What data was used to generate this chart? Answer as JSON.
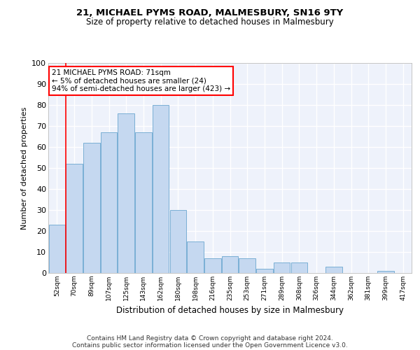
{
  "title1": "21, MICHAEL PYMS ROAD, MALMESBURY, SN16 9TY",
  "title2": "Size of property relative to detached houses in Malmesbury",
  "xlabel": "Distribution of detached houses by size in Malmesbury",
  "ylabel": "Number of detached properties",
  "categories": [
    "52sqm",
    "70sqm",
    "89sqm",
    "107sqm",
    "125sqm",
    "143sqm",
    "162sqm",
    "180sqm",
    "198sqm",
    "216sqm",
    "235sqm",
    "253sqm",
    "271sqm",
    "289sqm",
    "308sqm",
    "326sqm",
    "344sqm",
    "362sqm",
    "381sqm",
    "399sqm",
    "417sqm"
  ],
  "values": [
    23,
    52,
    62,
    67,
    76,
    67,
    80,
    30,
    15,
    7,
    8,
    7,
    2,
    5,
    5,
    0,
    3,
    0,
    0,
    1,
    0
  ],
  "bar_color": "#c5d8f0",
  "bar_edge_color": "#7aafd4",
  "annotation_text": "21 MICHAEL PYMS ROAD: 71sqm\n← 5% of detached houses are smaller (24)\n94% of semi-detached houses are larger (423) →",
  "annotation_box_color": "white",
  "annotation_box_edge_color": "red",
  "vline_color": "red",
  "vline_x": 0.5,
  "ylim": [
    0,
    100
  ],
  "yticks": [
    0,
    10,
    20,
    30,
    40,
    50,
    60,
    70,
    80,
    90,
    100
  ],
  "bg_color": "#eef2fb",
  "grid_color": "white",
  "footer1": "Contains HM Land Registry data © Crown copyright and database right 2024.",
  "footer2": "Contains public sector information licensed under the Open Government Licence v3.0."
}
